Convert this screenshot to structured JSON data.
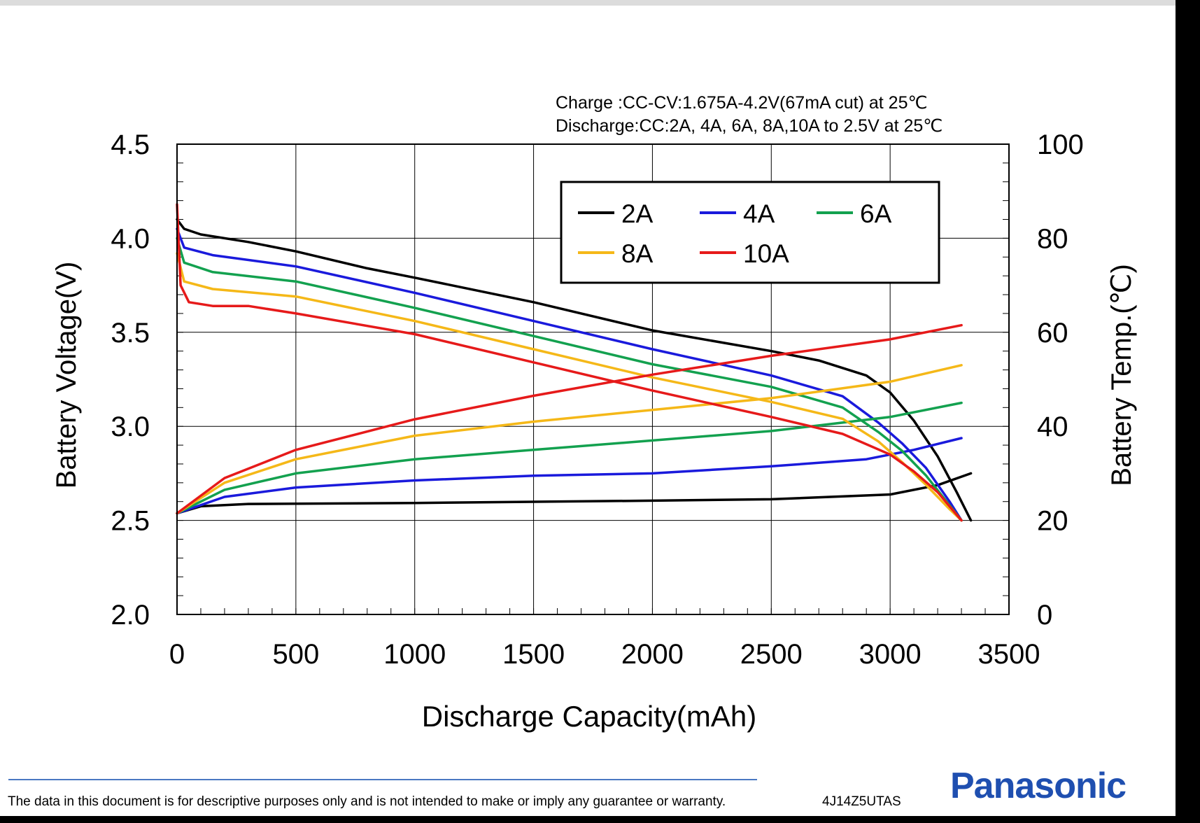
{
  "chart_data": {
    "type": "line",
    "conditions": [
      "Charge :CC-CV:1.675A-4.2V(67mA cut) at 25℃",
      "Discharge:CC:2A, 4A, 6A, 8A,10A to 2.5V at 25℃"
    ],
    "xlabel": "Discharge Capacity(mAh)",
    "ylabel": "Battery Voltage(V)",
    "y2label": "Battery Temp.(℃)",
    "xlim": [
      0,
      3500
    ],
    "ylim": [
      2.0,
      4.5
    ],
    "y2lim": [
      0,
      100
    ],
    "x_ticks": [
      "0",
      "500",
      "1000",
      "1500",
      "2000",
      "2500",
      "3000",
      "3500"
    ],
    "y_ticks": [
      "2.0",
      "2.5",
      "3.0",
      "3.5",
      "4.0",
      "4.5"
    ],
    "y2_ticks": [
      "0",
      "20",
      "40",
      "60",
      "80",
      "100"
    ],
    "grid": true,
    "legend": {
      "placement": "top-right",
      "entries": [
        "2A",
        "4A",
        "6A",
        "8A",
        "10A"
      ]
    },
    "series": [
      {
        "name": "2A",
        "color": "#000000",
        "voltage": [
          [
            0,
            4.1
          ],
          [
            30,
            4.05
          ],
          [
            100,
            4.02
          ],
          [
            300,
            3.98
          ],
          [
            500,
            3.93
          ],
          [
            800,
            3.84
          ],
          [
            1000,
            3.79
          ],
          [
            1500,
            3.66
          ],
          [
            2000,
            3.51
          ],
          [
            2500,
            3.4
          ],
          [
            2700,
            3.35
          ],
          [
            2900,
            3.27
          ],
          [
            3000,
            3.18
          ],
          [
            3100,
            3.03
          ],
          [
            3200,
            2.84
          ],
          [
            3280,
            2.65
          ],
          [
            3340,
            2.5
          ]
        ],
        "temp": [
          [
            0,
            21.5
          ],
          [
            100,
            23
          ],
          [
            300,
            23.5
          ],
          [
            1000,
            23.7
          ],
          [
            2000,
            24.2
          ],
          [
            2500,
            24.5
          ],
          [
            3000,
            25.5
          ],
          [
            3200,
            27.5
          ],
          [
            3340,
            30
          ]
        ]
      },
      {
        "name": "4A",
        "color": "#1a1adc",
        "voltage": [
          [
            0,
            4.05
          ],
          [
            30,
            3.95
          ],
          [
            150,
            3.91
          ],
          [
            500,
            3.85
          ],
          [
            1000,
            3.71
          ],
          [
            1500,
            3.56
          ],
          [
            2000,
            3.41
          ],
          [
            2500,
            3.27
          ],
          [
            2800,
            3.16
          ],
          [
            2950,
            3.02
          ],
          [
            3050,
            2.91
          ],
          [
            3150,
            2.78
          ],
          [
            3250,
            2.6
          ],
          [
            3300,
            2.5
          ]
        ],
        "temp": [
          [
            0,
            21.5
          ],
          [
            200,
            25
          ],
          [
            500,
            27
          ],
          [
            1000,
            28.5
          ],
          [
            1500,
            29.5
          ],
          [
            2000,
            30
          ],
          [
            2500,
            31.5
          ],
          [
            2900,
            33
          ],
          [
            3100,
            35
          ],
          [
            3300,
            37.5
          ]
        ]
      },
      {
        "name": "6A",
        "color": "#13a14f",
        "voltage": [
          [
            0,
            4.0
          ],
          [
            30,
            3.87
          ],
          [
            150,
            3.82
          ],
          [
            500,
            3.77
          ],
          [
            1000,
            3.63
          ],
          [
            1500,
            3.48
          ],
          [
            2000,
            3.33
          ],
          [
            2500,
            3.21
          ],
          [
            2800,
            3.1
          ],
          [
            2950,
            2.97
          ],
          [
            3050,
            2.87
          ],
          [
            3150,
            2.74
          ],
          [
            3250,
            2.58
          ],
          [
            3300,
            2.5
          ]
        ],
        "temp": [
          [
            0,
            21.5
          ],
          [
            200,
            26.5
          ],
          [
            500,
            30
          ],
          [
            1000,
            33
          ],
          [
            1500,
            35
          ],
          [
            2000,
            37
          ],
          [
            2500,
            39
          ],
          [
            3000,
            42
          ],
          [
            3300,
            45
          ]
        ]
      },
      {
        "name": "8A",
        "color": "#f5b818",
        "voltage": [
          [
            0,
            3.92
          ],
          [
            30,
            3.77
          ],
          [
            150,
            3.73
          ],
          [
            500,
            3.69
          ],
          [
            1000,
            3.56
          ],
          [
            1500,
            3.41
          ],
          [
            2000,
            3.26
          ],
          [
            2500,
            3.13
          ],
          [
            2800,
            3.04
          ],
          [
            2950,
            2.92
          ],
          [
            3050,
            2.81
          ],
          [
            3150,
            2.69
          ],
          [
            3250,
            2.56
          ],
          [
            3300,
            2.5
          ]
        ],
        "temp": [
          [
            0,
            21.5
          ],
          [
            200,
            28
          ],
          [
            500,
            33
          ],
          [
            1000,
            38
          ],
          [
            1500,
            41
          ],
          [
            2000,
            43.5
          ],
          [
            2500,
            46
          ],
          [
            3000,
            49.5
          ],
          [
            3300,
            53
          ]
        ]
      },
      {
        "name": "10A",
        "color": "#e61a1a",
        "voltage": [
          [
            0,
            4.18
          ],
          [
            15,
            3.75
          ],
          [
            50,
            3.66
          ],
          [
            150,
            3.64
          ],
          [
            300,
            3.64
          ],
          [
            500,
            3.6
          ],
          [
            1000,
            3.49
          ],
          [
            1500,
            3.34
          ],
          [
            2000,
            3.19
          ],
          [
            2500,
            3.05
          ],
          [
            2800,
            2.96
          ],
          [
            3000,
            2.85
          ],
          [
            3100,
            2.76
          ],
          [
            3200,
            2.65
          ],
          [
            3300,
            2.5
          ]
        ],
        "temp": [
          [
            0,
            21.5
          ],
          [
            200,
            29
          ],
          [
            500,
            35
          ],
          [
            1000,
            41.5
          ],
          [
            1500,
            46.5
          ],
          [
            2000,
            51
          ],
          [
            2500,
            55
          ],
          [
            3000,
            58.5
          ],
          [
            3300,
            61.5
          ]
        ]
      }
    ]
  },
  "footer": {
    "disclaimer": "The data in this document is for descriptive purposes only and is not intended to make or imply any guarantee or warranty.",
    "doc_code": "4J14Z5UTAS",
    "brand": "Panasonic"
  }
}
